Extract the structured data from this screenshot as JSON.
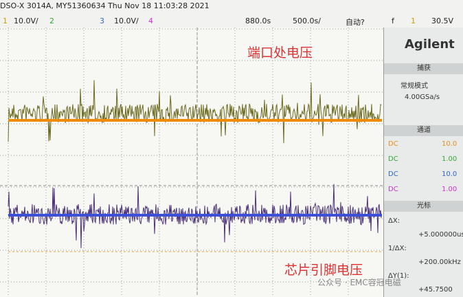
{
  "header": {
    "title": "DSO-X 3014A, MY51360634 Thu Nov 18 11:03:28 2021"
  },
  "status_bar": {
    "ch1": "1",
    "ch1_scale": "10.0V/",
    "ch2": "2",
    "ch3": "3",
    "ch3_scale": "10.0V/",
    "ch4": "4",
    "delay": "880.0s",
    "timebase": "500.0s/",
    "trigger_mode": "自动?",
    "trigger_edge": "f",
    "trigger_source": "1",
    "trigger_level": "30.5V"
  },
  "annotations": [
    "端口处电压",
    "芯片引脚电压"
  ],
  "panel": {
    "brand": "Agilent",
    "acquire": {
      "title": "捕获",
      "mode": "常规模式",
      "rate": "4.00GSa/s"
    },
    "channels": {
      "title": "通道",
      "rows": [
        {
          "coupling": "DC",
          "probe": "10.0"
        },
        {
          "coupling": "DC",
          "probe": "1.00"
        },
        {
          "coupling": "DC",
          "probe": "10.0"
        },
        {
          "coupling": "DC",
          "probe": "1.00"
        }
      ]
    },
    "cursors": {
      "title": "光标",
      "rows": [
        {
          "label": "ΔX:",
          "value": "+5.000000us"
        },
        {
          "label": "1/ΔX:",
          "value": "+200.00kHz"
        },
        {
          "label": "ΔY(1):",
          "value": "+45.7500"
        }
      ]
    }
  },
  "watermark": "公众号 · EMC容冠电磁"
}
